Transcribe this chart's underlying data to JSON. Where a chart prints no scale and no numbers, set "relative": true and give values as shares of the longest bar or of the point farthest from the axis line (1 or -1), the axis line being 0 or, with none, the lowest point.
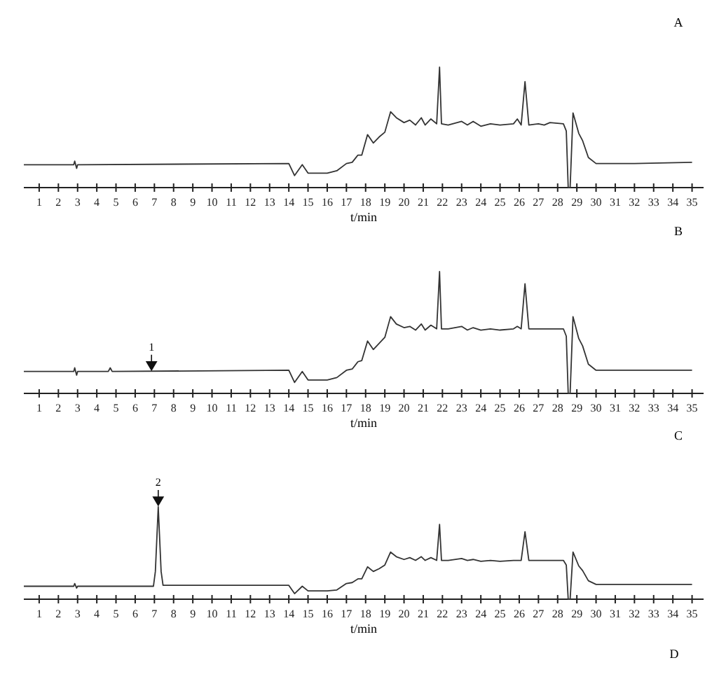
{
  "chart_data": [
    {
      "type": "line",
      "title": "A",
      "xlabel": "t/min",
      "relative": true,
      "xlim": [
        0.2,
        35.6
      ],
      "xticks": [
        1,
        2,
        3,
        4,
        5,
        6,
        7,
        8,
        9,
        10,
        11,
        12,
        13,
        14,
        15,
        16,
        17,
        18,
        19,
        20,
        21,
        22,
        23,
        24,
        25,
        26,
        27,
        28,
        29,
        30,
        31,
        32,
        33,
        34,
        35
      ],
      "grid": false,
      "marker": "none",
      "line_style": "solid",
      "series": [
        {
          "color": "#333333",
          "x": [
            0.2,
            2.8,
            2.85,
            2.95,
            3.0,
            14.0,
            14.3,
            14.7,
            15.0,
            16.0,
            16.5,
            17.0,
            17.3,
            17.6,
            17.8,
            18.1,
            18.4,
            18.7,
            19.0,
            19.3,
            19.6,
            20.0,
            20.3,
            20.6,
            20.9,
            21.1,
            21.4,
            21.7,
            21.85,
            21.95,
            22.3,
            23.0,
            23.3,
            23.6,
            24.0,
            24.5,
            25.0,
            25.7,
            25.9,
            26.1,
            26.3,
            26.5,
            27.0,
            27.3,
            27.6,
            28.3,
            28.45,
            28.55,
            28.65,
            28.8,
            29.1,
            29.3,
            29.6,
            30.0,
            32.0,
            35.0
          ],
          "values": [
            0.19,
            0.19,
            0.22,
            0.16,
            0.19,
            0.2,
            0.1,
            0.19,
            0.12,
            0.12,
            0.14,
            0.2,
            0.21,
            0.27,
            0.27,
            0.44,
            0.37,
            0.42,
            0.46,
            0.63,
            0.58,
            0.54,
            0.56,
            0.52,
            0.58,
            0.52,
            0.57,
            0.53,
            1.0,
            0.53,
            0.52,
            0.55,
            0.52,
            0.55,
            0.51,
            0.53,
            0.52,
            0.53,
            0.57,
            0.52,
            0.88,
            0.52,
            0.53,
            0.52,
            0.54,
            0.53,
            0.47,
            0.0,
            0.0,
            0.62,
            0.45,
            0.39,
            0.25,
            0.2,
            0.2,
            0.21
          ]
        }
      ]
    },
    {
      "type": "line",
      "title": "B",
      "xlabel": "t/min",
      "relative": true,
      "xlim": [
        0.2,
        35.6
      ],
      "xticks": [
        1,
        2,
        3,
        4,
        5,
        6,
        7,
        8,
        9,
        10,
        11,
        12,
        13,
        14,
        15,
        16,
        17,
        18,
        19,
        20,
        21,
        22,
        23,
        24,
        25,
        26,
        27,
        28,
        29,
        30,
        31,
        32,
        33,
        34,
        35
      ],
      "grid": false,
      "marker": "none",
      "line_style": "solid",
      "annotations": [
        {
          "text": "1",
          "x": 6.85,
          "y": 0.18
        }
      ],
      "series": [
        {
          "color": "#333333",
          "x": [
            0.2,
            2.8,
            2.85,
            2.95,
            3.0,
            4.6,
            4.7,
            4.8,
            14.0,
            14.3,
            14.7,
            15.0,
            16.0,
            16.5,
            17.0,
            17.3,
            17.6,
            17.8,
            18.1,
            18.4,
            18.7,
            19.0,
            19.3,
            19.6,
            20.0,
            20.3,
            20.6,
            20.9,
            21.1,
            21.4,
            21.7,
            21.85,
            21.95,
            22.3,
            23.0,
            23.3,
            23.6,
            24.0,
            24.5,
            25.0,
            25.7,
            25.9,
            26.1,
            26.3,
            26.5,
            27.0,
            27.6,
            28.3,
            28.45,
            28.55,
            28.65,
            28.8,
            29.1,
            29.3,
            29.6,
            30.0,
            32.0,
            35.0
          ],
          "values": [
            0.18,
            0.18,
            0.21,
            0.15,
            0.18,
            0.18,
            0.21,
            0.18,
            0.19,
            0.09,
            0.18,
            0.11,
            0.11,
            0.13,
            0.19,
            0.2,
            0.26,
            0.27,
            0.43,
            0.36,
            0.41,
            0.46,
            0.63,
            0.57,
            0.54,
            0.55,
            0.52,
            0.57,
            0.52,
            0.56,
            0.53,
            1.0,
            0.53,
            0.53,
            0.55,
            0.52,
            0.54,
            0.52,
            0.53,
            0.52,
            0.53,
            0.55,
            0.53,
            0.9,
            0.53,
            0.53,
            0.53,
            0.53,
            0.47,
            0.0,
            0.0,
            0.63,
            0.45,
            0.39,
            0.24,
            0.19,
            0.19,
            0.19
          ]
        }
      ]
    },
    {
      "type": "line",
      "title": "C",
      "xlabel": "t/min",
      "relative": true,
      "xlim": [
        0.2,
        35.6
      ],
      "xticks": [
        1,
        2,
        3,
        4,
        5,
        6,
        7,
        8,
        9,
        10,
        11,
        12,
        13,
        14,
        15,
        16,
        17,
        18,
        19,
        20,
        21,
        22,
        23,
        24,
        25,
        26,
        27,
        28,
        29,
        30,
        31,
        32,
        33,
        34,
        35
      ],
      "grid": false,
      "marker": "none",
      "line_style": "solid",
      "annotations": [
        {
          "text": "2",
          "x": 7.2,
          "y": 1.0
        },
        "D"
      ],
      "series": [
        {
          "color": "#333333",
          "x": [
            0.2,
            2.8,
            2.85,
            2.95,
            3.0,
            6.95,
            7.05,
            7.2,
            7.35,
            7.45,
            14.0,
            14.3,
            14.7,
            15.0,
            16.0,
            16.5,
            17.0,
            17.3,
            17.6,
            17.8,
            18.1,
            18.4,
            18.7,
            19.0,
            19.3,
            19.6,
            20.0,
            20.3,
            20.6,
            20.9,
            21.1,
            21.4,
            21.7,
            21.85,
            21.95,
            22.3,
            23.0,
            23.3,
            23.6,
            24.0,
            24.5,
            25.0,
            25.7,
            26.1,
            26.3,
            26.5,
            27.0,
            27.6,
            28.3,
            28.45,
            28.55,
            28.65,
            28.8,
            29.1,
            29.3,
            29.6,
            30.0,
            32.0,
            35.0
          ],
          "values": [
            0.14,
            0.14,
            0.17,
            0.12,
            0.14,
            0.14,
            0.3,
            1.0,
            0.3,
            0.15,
            0.15,
            0.06,
            0.14,
            0.09,
            0.09,
            0.1,
            0.17,
            0.18,
            0.22,
            0.22,
            0.35,
            0.3,
            0.33,
            0.37,
            0.51,
            0.46,
            0.43,
            0.45,
            0.42,
            0.46,
            0.42,
            0.45,
            0.42,
            0.81,
            0.42,
            0.42,
            0.44,
            0.42,
            0.43,
            0.41,
            0.42,
            0.41,
            0.42,
            0.42,
            0.73,
            0.42,
            0.42,
            0.42,
            0.42,
            0.37,
            0.0,
            0.0,
            0.51,
            0.36,
            0.31,
            0.2,
            0.16,
            0.16,
            0.16
          ]
        }
      ]
    }
  ]
}
